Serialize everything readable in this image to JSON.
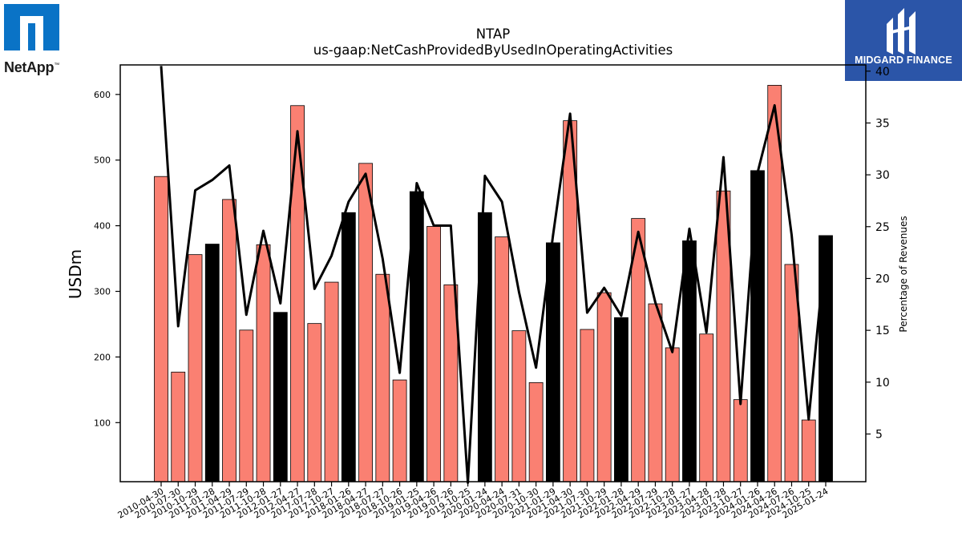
{
  "logos": {
    "left": {
      "text": "NetApp",
      "trademark": "™",
      "icon": "netapp-logo-icon",
      "color": "#0a73c6"
    },
    "right": {
      "text": "MIDGARD FINANCE",
      "icon": "midgard-logo-icon",
      "color": "#2b55a8"
    }
  },
  "chart_data": {
    "type": "bar",
    "title": "NTAP",
    "subtitle": "us-gaap:NetCashProvidedByUsedInOperatingActivities",
    "ylabel": "USDm",
    "y2label": "Percentage of Revenues",
    "ylim": [
      10,
      645
    ],
    "y2lim": [
      0.4,
      40.6
    ],
    "yticks": [
      100,
      200,
      300,
      400,
      500,
      600
    ],
    "y2ticks": [
      5,
      10,
      15,
      20,
      25,
      30,
      35,
      40
    ],
    "categories": [
      "2010-04-30",
      "2010-07-30",
      "2010-10-29",
      "2011-01-28",
      "2011-04-29",
      "2011-07-29",
      "2011-10-28",
      "2012-01-27",
      "2012-04-27",
      "2017-07-28",
      "2017-10-27",
      "2018-01-26",
      "2018-04-27",
      "2018-07-27",
      "2018-10-26",
      "2019-01-25",
      "2019-04-26",
      "2019-07-26",
      "2019-10-25",
      "2020-01-24",
      "2020-04-24",
      "2020-07-31",
      "2020-10-30",
      "2021-01-29",
      "2021-04-30",
      "2021-07-30",
      "2021-10-29",
      "2022-01-28",
      "2022-04-29",
      "2022-07-29",
      "2022-10-28",
      "2023-01-27",
      "2023-04-28",
      "2023-07-28",
      "2023-10-27",
      "2024-01-26",
      "2024-04-26",
      "2024-07-26",
      "2024-10-25",
      "2025-01-24"
    ],
    "series": [
      {
        "type": "bar",
        "values": [
          475,
          177,
          356,
          372,
          440,
          241,
          371,
          268,
          583,
          251,
          314,
          420,
          495,
          326,
          165,
          452,
          399,
          310,
          0,
          420,
          383,
          240,
          161,
          374,
          560,
          242,
          298,
          260,
          411,
          281,
          214,
          377,
          235,
          453,
          135,
          484,
          614,
          341,
          104,
          385
        ],
        "highlight_color": "#000000",
        "color": "#fa8072",
        "highlighted": [
          false,
          false,
          false,
          true,
          false,
          false,
          false,
          true,
          false,
          false,
          false,
          true,
          false,
          false,
          false,
          true,
          false,
          false,
          true,
          true,
          false,
          false,
          false,
          true,
          false,
          false,
          false,
          true,
          false,
          false,
          false,
          true,
          false,
          false,
          false,
          true,
          false,
          false,
          false,
          true
        ]
      },
      {
        "type": "line",
        "axis": "right",
        "color": "#000000",
        "values": [
          40.5,
          15.4,
          28.5,
          29.5,
          30.9,
          16.5,
          24.6,
          17.6,
          34.2,
          19.0,
          22.2,
          27.4,
          30.1,
          21.9,
          10.9,
          29.2,
          25.1,
          25.1,
          0.3,
          29.9,
          27.4,
          18.7,
          11.4,
          24.2,
          35.9,
          16.7,
          19.1,
          16.4,
          24.5,
          17.7,
          12.9,
          24.8,
          14.8,
          31.7,
          7.9,
          30.2,
          36.7,
          24.2,
          6.4,
          23.2
        ]
      }
    ]
  }
}
